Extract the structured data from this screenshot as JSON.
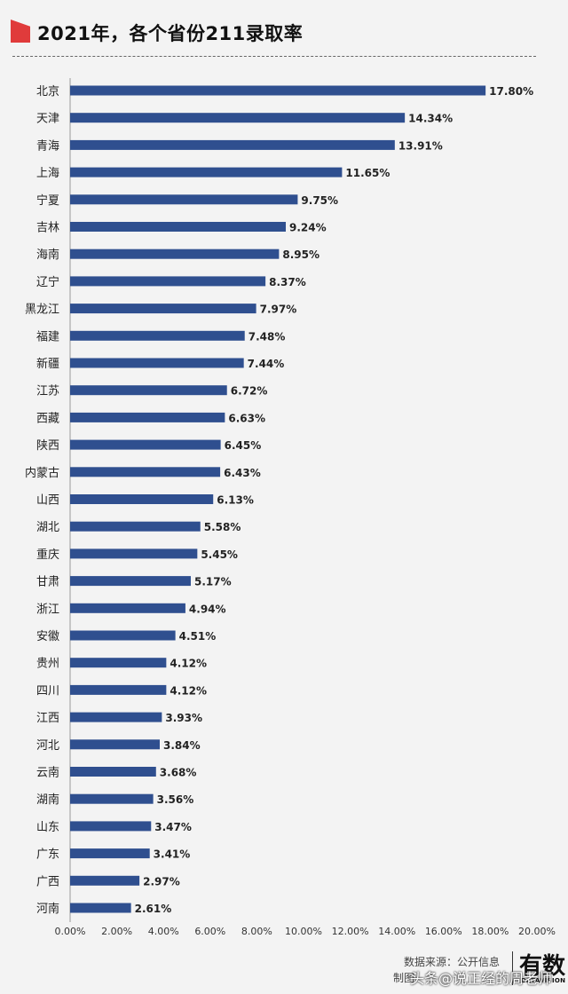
{
  "title": "2021年，各个省份211录取率",
  "footer": {
    "source": "数据来源：公开信息",
    "maker": "制图",
    "brand": "有数",
    "brand_sub": "DATAVISION",
    "watermark": "头条@说正经的周老师"
  },
  "colors": {
    "bar": "#2f4f8f",
    "accent": "#e03b3b",
    "background": "#f3f3f3"
  },
  "chart_data": {
    "type": "bar",
    "orientation": "horizontal",
    "title": "2021年，各个省份211录取率",
    "xlabel": "",
    "ylabel": "",
    "xlim": [
      0,
      20
    ],
    "grid": false,
    "legend": "none",
    "x_ticks": [
      "0.00%",
      "2.00%",
      "4.00%",
      "6.00%",
      "8.00%",
      "10.00%",
      "12.00%",
      "14.00%",
      "16.00%",
      "18.00%",
      "20.00%"
    ],
    "categories": [
      "北京",
      "天津",
      "青海",
      "上海",
      "宁夏",
      "吉林",
      "海南",
      "辽宁",
      "黑龙江",
      "福建",
      "新疆",
      "江苏",
      "西藏",
      "陕西",
      "内蒙古",
      "山西",
      "湖北",
      "重庆",
      "甘肃",
      "浙江",
      "安徽",
      "贵州",
      "四川",
      "江西",
      "河北",
      "云南",
      "湖南",
      "山东",
      "广东",
      "广西",
      "河南"
    ],
    "values": [
      17.8,
      14.34,
      13.91,
      11.65,
      9.75,
      9.24,
      8.95,
      8.37,
      7.97,
      7.48,
      7.44,
      6.72,
      6.63,
      6.45,
      6.43,
      6.13,
      5.58,
      5.45,
      5.17,
      4.94,
      4.51,
      4.12,
      4.12,
      3.93,
      3.84,
      3.68,
      3.56,
      3.47,
      3.41,
      2.97,
      2.61
    ],
    "labels": [
      "17.80%",
      "14.34%",
      "13.91%",
      "11.65%",
      "9.75%",
      "9.24%",
      "8.95%",
      "8.37%",
      "7.97%",
      "7.48%",
      "7.44%",
      "6.72%",
      "6.63%",
      "6.45%",
      "6.43%",
      "6.13%",
      "5.58%",
      "5.45%",
      "5.17%",
      "4.94%",
      "4.51%",
      "4.12%",
      "4.12%",
      "3.93%",
      "3.84%",
      "3.68%",
      "3.56%",
      "3.47%",
      "3.41%",
      "2.97%",
      "2.61%"
    ]
  }
}
